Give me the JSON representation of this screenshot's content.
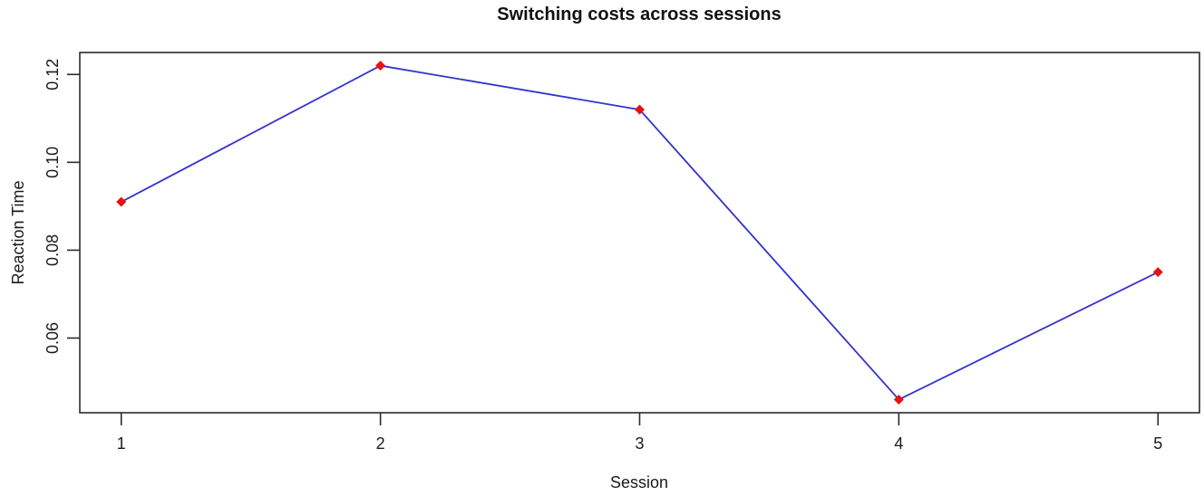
{
  "chart_data": {
    "type": "line",
    "title": "Switching costs across sessions",
    "xlabel": "Session",
    "ylabel": "Reaction Time",
    "x": [
      1,
      2,
      3,
      4,
      5
    ],
    "values": [
      0.091,
      0.122,
      0.112,
      0.046,
      0.075
    ],
    "categories": [
      "1",
      "2",
      "3",
      "4",
      "5"
    ],
    "xticks": [
      1,
      2,
      3,
      4,
      5
    ],
    "xtick_labels": [
      "1",
      "2",
      "3",
      "4",
      "5"
    ],
    "yticks": [
      0.06,
      0.08,
      0.1,
      0.12
    ],
    "ytick_labels": [
      "0.06",
      "0.08",
      "0.10",
      "0.12"
    ],
    "xlim": [
      0.84,
      5.16
    ],
    "ylim": [
      0.043,
      0.125
    ],
    "grid": false,
    "legend": null,
    "line_color": "#3333cc",
    "marker": "diamond",
    "marker_color": "#e8120f",
    "axis_color": "#2b2b2b"
  }
}
